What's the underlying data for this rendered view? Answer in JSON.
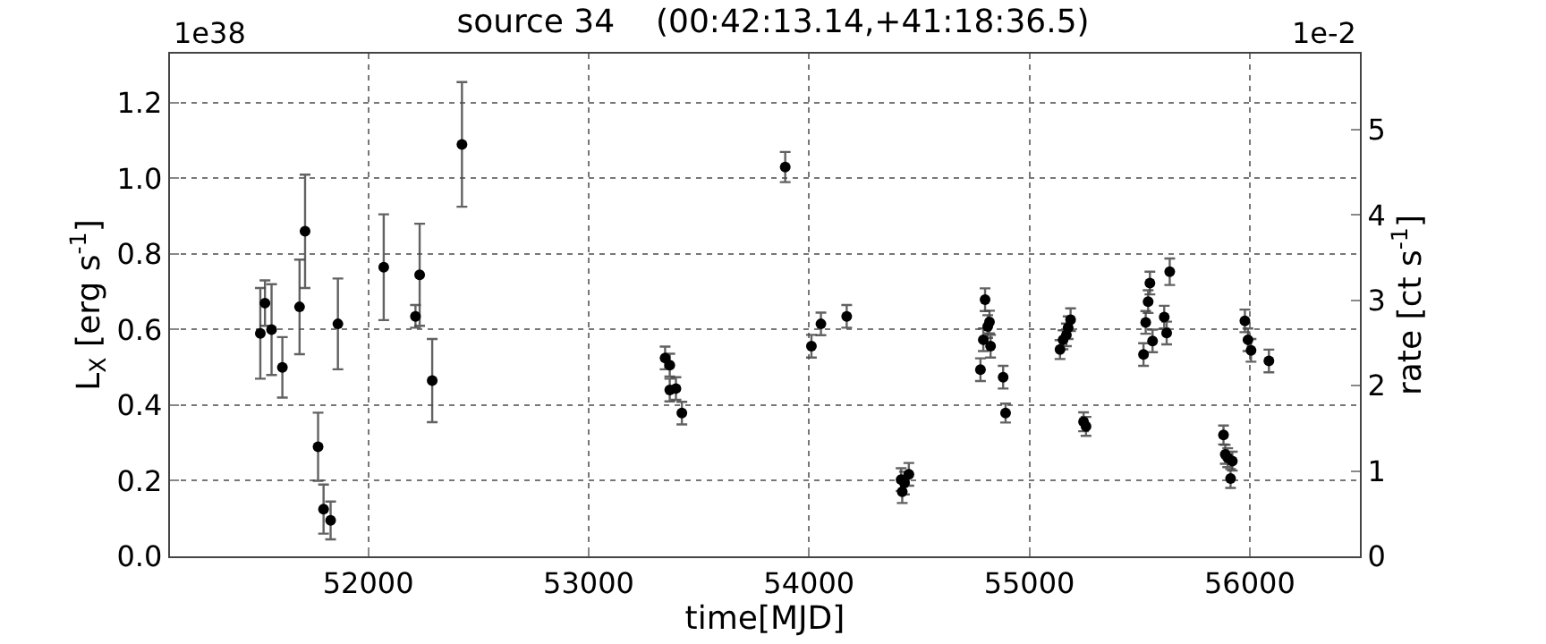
{
  "chart_data": {
    "type": "scatter",
    "title": "source 34    (00:42:13.14,+41:18:36.5)",
    "xlabel": "time[MJD]",
    "ylabel": "L$_{X}$ [erg s$^{-1}$]",
    "y2label": "rate [ct s$^{-1}$]",
    "annotations": [
      "1e38",
      "1e-2"
    ],
    "x": [
      51510,
      51531,
      51561,
      51610,
      51688,
      51713,
      51772,
      51797,
      51829,
      51862,
      52070,
      52214,
      52233,
      52290,
      52425,
      53347,
      53368,
      53368,
      53396,
      53423,
      53892,
      54011,
      54054,
      54171,
      54418,
      54423,
      54433,
      54453,
      54778,
      54791,
      54799,
      54811,
      54819,
      54824,
      54881,
      54892,
      55139,
      55153,
      55168,
      55176,
      55187,
      55246,
      55257,
      55518,
      55528,
      55539,
      55547,
      55559,
      55612,
      55623,
      55637,
      55881,
      55889,
      55900,
      55913,
      55921,
      55978,
      55992,
      56006,
      56087
    ],
    "series": [
      {
        "color": "#000000",
        "values": [
          0.59,
          0.67,
          0.6,
          0.5,
          0.66,
          0.86,
          0.29,
          0.125,
          0.095,
          0.615,
          0.765,
          0.635,
          0.745,
          0.465,
          1.09,
          0.525,
          0.506,
          0.44,
          0.444,
          0.379,
          1.03,
          0.556,
          0.615,
          0.635,
          0.203,
          0.171,
          0.194,
          0.217,
          0.494,
          0.573,
          0.679,
          0.608,
          0.62,
          0.556,
          0.474,
          0.379,
          0.547,
          0.573,
          0.586,
          0.605,
          0.626,
          0.356,
          0.344,
          0.534,
          0.619,
          0.674,
          0.723,
          0.57,
          0.633,
          0.591,
          0.753,
          0.321,
          0.27,
          0.261,
          0.206,
          0.252,
          0.623,
          0.573,
          0.545,
          0.517
        ],
        "errors": [
          0.12,
          0.06,
          0.12,
          0.08,
          0.125,
          0.15,
          0.09,
          0.065,
          0.05,
          0.12,
          0.14,
          0.03,
          0.135,
          0.11,
          0.165,
          0.03,
          0.03,
          0.03,
          0.03,
          0.03,
          0.04,
          0.03,
          0.03,
          0.03,
          0.03,
          0.03,
          0.03,
          0.03,
          0.03,
          0.03,
          0.03,
          0.03,
          0.03,
          0.03,
          0.03,
          0.025,
          0.025,
          0.025,
          0.03,
          0.03,
          0.03,
          0.025,
          0.025,
          0.03,
          0.03,
          0.03,
          0.03,
          0.03,
          0.03,
          0.03,
          0.035,
          0.025,
          0.025,
          0.025,
          0.025,
          0.025,
          0.03,
          0.03,
          0.03,
          0.03
        ]
      }
    ],
    "xlim": [
      51100,
      56500
    ],
    "xticks": [
      52000,
      53000,
      54000,
      55000,
      56000
    ],
    "ylim": [
      0,
      1.33
    ],
    "yticks": [
      {
        "value": 0,
        "label": "0.0"
      },
      {
        "value": 0.2,
        "label": "0.2"
      },
      {
        "value": 0.4,
        "label": "0.4"
      },
      {
        "value": 0.6,
        "label": "0.6"
      },
      {
        "value": 0.8,
        "label": "0.8"
      },
      {
        "value": 1.0,
        "label": "1.0"
      },
      {
        "value": 1.2,
        "label": "1.2"
      }
    ],
    "y2lim": [
      0,
      5.89
    ],
    "y2ticks": [
      0,
      1,
      2,
      3,
      4,
      5
    ],
    "grid": true,
    "marker": "circle"
  }
}
